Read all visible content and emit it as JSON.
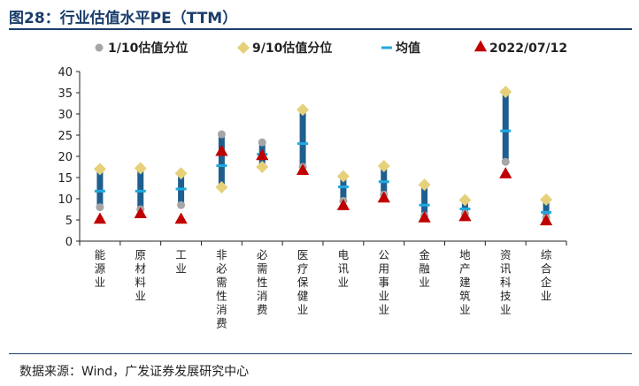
{
  "header": {
    "title": "图28：行业估值水平PE（TTM）"
  },
  "source": "数据来源：Wind，广发证券发展研究中心",
  "colors": {
    "bar": "#1f5f8f",
    "p10": "#a6a6a6",
    "p90": "#e6d07a",
    "mean": "#1fa9df",
    "current": "#c00000",
    "axis": "#222222"
  },
  "chart_data": {
    "type": "range-dot",
    "title": "行业估值水平PE（TTM）",
    "categories": [
      "能源业",
      "原材料业",
      "工业",
      "非必需性消费",
      "必需性消费",
      "医疗保健业",
      "电讯业",
      "公用事业业",
      "金融业",
      "地产建筑业",
      "资讯科技业",
      "综合企业"
    ],
    "ylim": [
      0,
      40
    ],
    "yticks": [
      0,
      5,
      10,
      15,
      20,
      25,
      30,
      35,
      40
    ],
    "legend": [
      "1/10估值分位",
      "9/10估值分位",
      "均值",
      "2022/07/12"
    ],
    "series": [
      {
        "name": "1/10估值分位",
        "marker": "circle",
        "values": [
          8.0,
          7.5,
          8.5,
          25.2,
          23.3,
          17.5,
          9.5,
          11.0,
          6.0,
          6.5,
          18.7,
          5.5
        ]
      },
      {
        "name": "9/10估值分位",
        "marker": "diamond",
        "values": [
          17.0,
          17.2,
          16.0,
          12.7,
          17.5,
          31.0,
          15.3,
          17.7,
          13.3,
          9.7,
          35.2,
          9.8
        ]
      },
      {
        "name": "均值",
        "marker": "dash",
        "values": [
          11.8,
          11.8,
          12.3,
          17.8,
          20.5,
          23.0,
          12.8,
          14.0,
          8.5,
          7.6,
          26.0,
          6.8
        ]
      },
      {
        "name": "2022/07/12",
        "marker": "triangle",
        "values": [
          5.0,
          6.3,
          5.0,
          21.0,
          20.0,
          16.5,
          8.2,
          10.0,
          5.3,
          5.6,
          15.7,
          4.6
        ]
      }
    ]
  }
}
